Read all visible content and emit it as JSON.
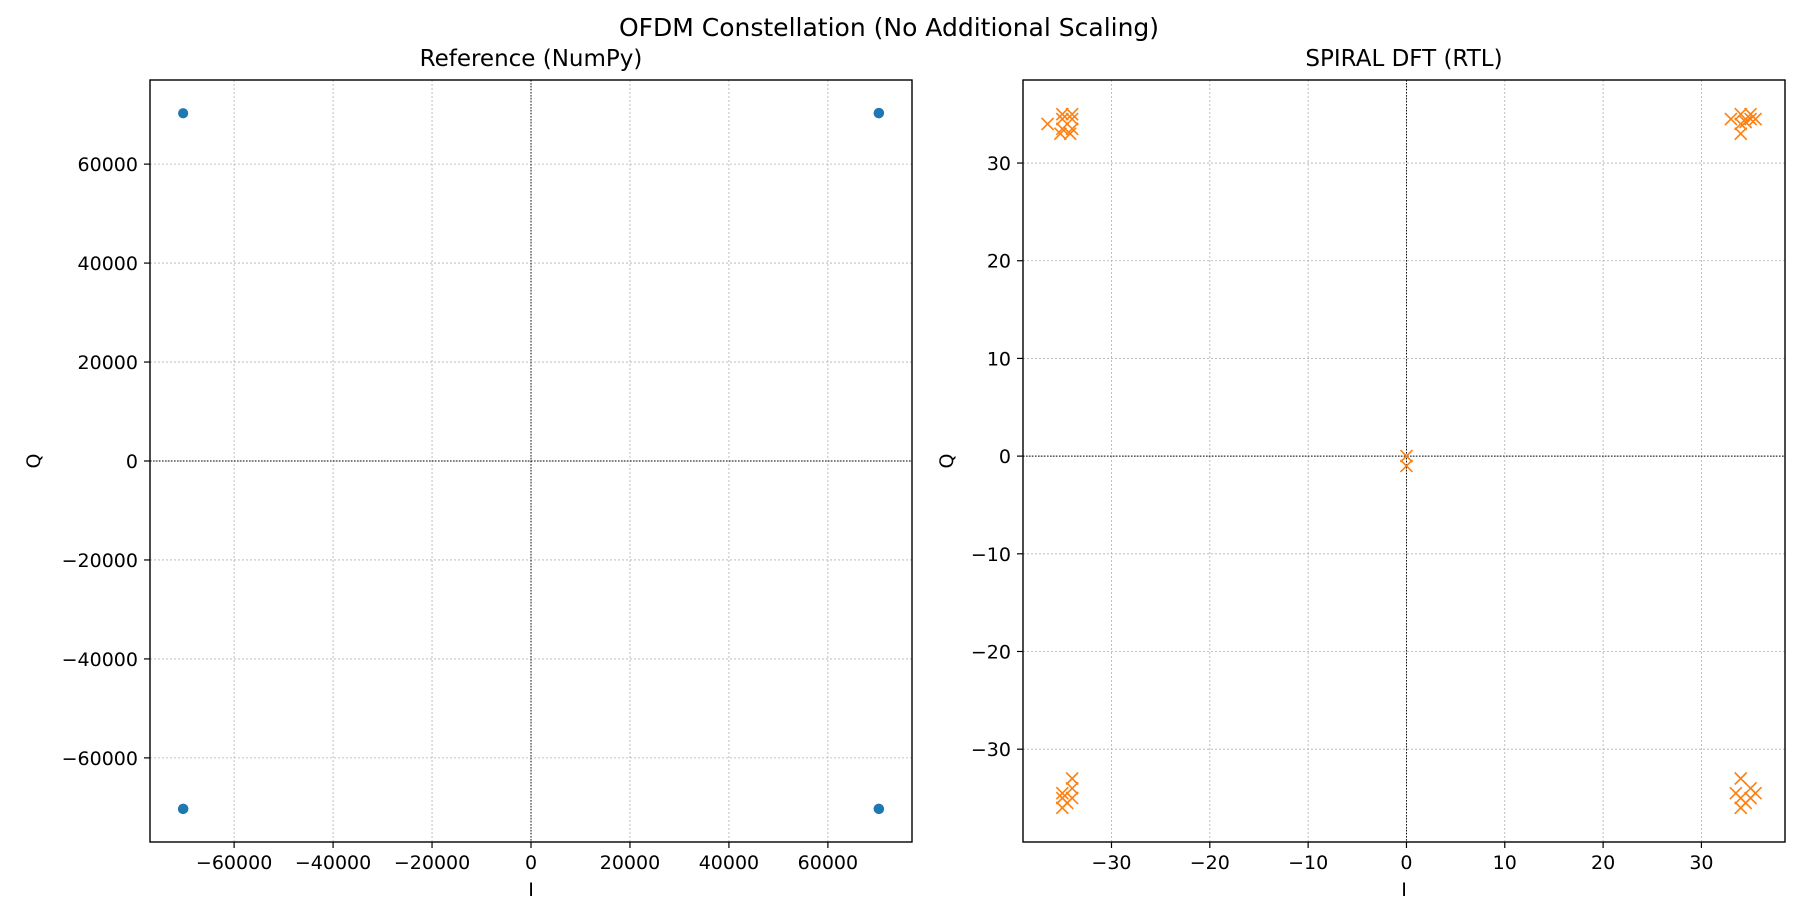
{
  "figure": {
    "suptitle": "OFDM Constellation (No Additional Scaling)"
  },
  "colors": {
    "reference_marker": "#1f77b4",
    "rtl_marker": "#ff7f0e",
    "grid": "#b0b0b0",
    "axis_line": "#000000"
  },
  "chart_data": [
    {
      "type": "scatter",
      "title": "Reference (NumPy)",
      "xlabel": "I",
      "ylabel": "Q",
      "xlim": [
        -77000,
        77000
      ],
      "ylim": [
        -77000,
        77000
      ],
      "xticks": [
        -60000,
        -40000,
        -20000,
        0,
        20000,
        40000,
        60000
      ],
      "yticks": [
        -60000,
        -40000,
        -20000,
        0,
        20000,
        40000,
        60000
      ],
      "grid": true,
      "marker": "circle",
      "marker_color": "#1f77b4",
      "zero_lines": true,
      "points": [
        [
          70300,
          70300
        ],
        [
          70300,
          70250
        ],
        [
          70250,
          70300
        ],
        [
          70350,
          70350
        ],
        [
          70300,
          70350
        ],
        [
          -70300,
          70300
        ],
        [
          -70300,
          70250
        ],
        [
          70300,
          -70300
        ],
        [
          70300,
          -70250
        ],
        [
          70250,
          -70300
        ],
        [
          70350,
          -70350
        ],
        [
          -70300,
          -70300
        ],
        [
          -70300,
          -70250
        ],
        [
          -70250,
          -70300
        ],
        [
          -70350,
          -70350
        ]
      ]
    },
    {
      "type": "scatter",
      "title": "SPIRAL DFT (RTL)",
      "xlabel": "I",
      "ylabel": "Q",
      "xlim": [
        -39,
        38.5
      ],
      "ylim": [
        -39.5,
        38.5
      ],
      "xticks": [
        -30,
        -20,
        -10,
        0,
        10,
        20,
        30
      ],
      "yticks": [
        -30,
        -20,
        -10,
        0,
        10,
        20,
        30
      ],
      "grid": true,
      "marker": "x",
      "marker_color": "#ff7f0e",
      "zero_lines": true,
      "points": [
        [
          -36.5,
          34
        ],
        [
          -35,
          34.5
        ],
        [
          -34,
          34.5
        ],
        [
          -35,
          33.5
        ],
        [
          -34,
          33.5
        ],
        [
          -35,
          35
        ],
        [
          -34,
          35
        ],
        [
          -35.2,
          33
        ],
        [
          -34.2,
          33
        ],
        [
          34,
          34
        ],
        [
          35,
          34.5
        ],
        [
          34,
          35
        ],
        [
          35,
          35
        ],
        [
          33,
          34.5
        ],
        [
          34,
          33
        ],
        [
          34.5,
          34.2
        ],
        [
          35.5,
          34.5
        ],
        [
          -35,
          -35
        ],
        [
          -34,
          -34
        ],
        [
          -35,
          -36
        ],
        [
          -34,
          -33
        ],
        [
          -35,
          -34.5
        ],
        [
          -34,
          -35
        ],
        [
          -34.5,
          -35.5
        ],
        [
          34,
          -35
        ],
        [
          35,
          -34
        ],
        [
          34,
          -36
        ],
        [
          34,
          -33
        ],
        [
          35,
          -35
        ],
        [
          33.5,
          -34.5
        ],
        [
          35.5,
          -34.5
        ],
        [
          34.5,
          -35.5
        ],
        [
          0,
          0
        ],
        [
          0,
          -1
        ]
      ]
    }
  ]
}
